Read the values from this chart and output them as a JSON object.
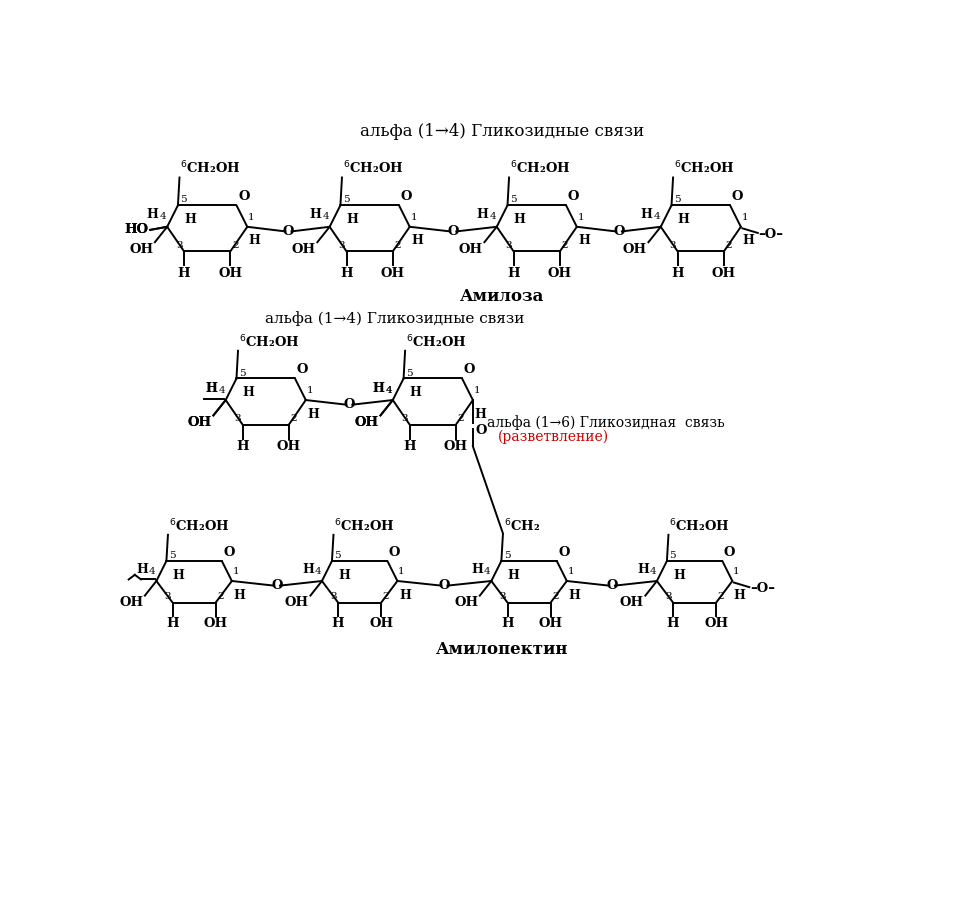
{
  "title_top": "альфа (1→4) Гликозидные связи",
  "label_amylosa": "Амилоза",
  "title_mid": "альфа (1→4) Гликозидные связи",
  "label_branch_line1": "альфа (1→6) Гликозидная  связь",
  "label_branch_line2": "(разветвление)",
  "label_amylopectin": "Амилопектин",
  "bg_color": "#ffffff",
  "line_color": "#000000",
  "text_color": "#000000",
  "red_color": "#cc0000",
  "arrow": "→"
}
